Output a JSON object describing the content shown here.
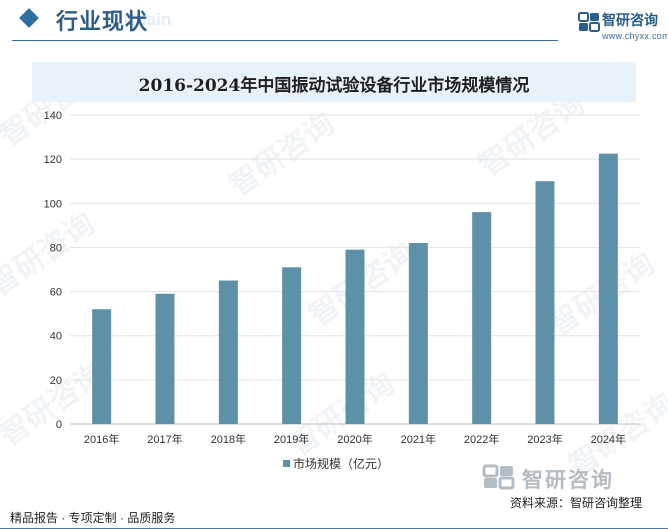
{
  "header": {
    "section_title": "行业现状",
    "ghost_word": "Chain",
    "brand_name": "智研咨询",
    "brand_url": "www.chyxx.com"
  },
  "watermark_text": "智研咨询",
  "chart_data": {
    "type": "bar",
    "title": "2016-2024年中国振动试验设备行业市场规模情况",
    "categories": [
      "2016年",
      "2017年",
      "2018年",
      "2019年",
      "2020年",
      "2021年",
      "2022年",
      "2023年",
      "2024年"
    ],
    "series": [
      {
        "name": "市场规模（亿元）",
        "values": [
          52,
          59,
          65,
          71,
          79,
          82,
          96,
          110,
          122.5
        ],
        "color": "#5e90a8"
      }
    ],
    "ylim": [
      0,
      140
    ],
    "yticks": [
      0,
      20,
      40,
      60,
      80,
      100,
      120,
      140
    ],
    "grid": true,
    "legend_position": "bottom-center"
  },
  "footer": {
    "logo_name": "智研咨询",
    "source": "资料来源：智研咨询整理",
    "left_text": "精品报告 · 专项定制 · 品质服务"
  }
}
